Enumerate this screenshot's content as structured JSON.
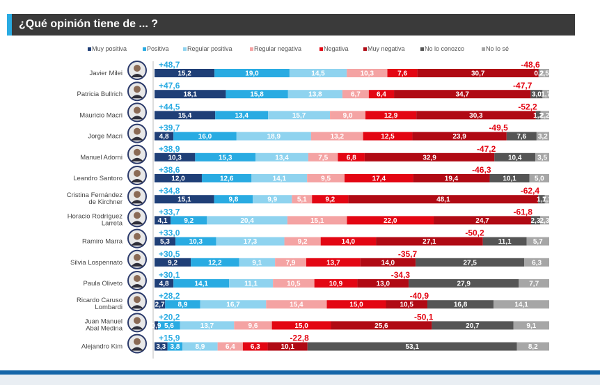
{
  "title": "¿Qué opinión tiene de ... ?",
  "colors": {
    "title_bg": "#3a3a3a",
    "title_accent": "#29abe2",
    "positive_total": "#29abe2",
    "negative_total": "#e30613",
    "footer": "#1565a8"
  },
  "chart_data": {
    "type": "bar",
    "orientation": "horizontal",
    "stacked": true,
    "normalized": true,
    "legend_position": "top",
    "categories": [
      "Javier Milei",
      "Patricia Bullrich",
      "Mauricio Macri",
      "Jorge Macri",
      "Manuel Adorni",
      "Leandro Santoro",
      "Cristina Fernández de Kirchner",
      "Horacio Rodríguez Larreta",
      "Ramiro Marra",
      "Silvia Lospennato",
      "Paula Oliveto",
      "Ricardo Caruso Lombardi",
      "Juan Manuel Abal Medina",
      "Alejandro Kim"
    ],
    "category_lines": [
      [
        "Javier Milei"
      ],
      [
        "Patricia Bullrich"
      ],
      [
        "Mauricio Macri"
      ],
      [
        "Jorge Macri"
      ],
      [
        "Manuel Adorni"
      ],
      [
        "Leandro Santoro"
      ],
      [
        "Cristina Fernández",
        "de Kirchner"
      ],
      [
        "Horacio Rodríguez",
        "Larreta"
      ],
      [
        "Ramiro Marra"
      ],
      [
        "Silvia Lospennato"
      ],
      [
        "Paula Oliveto"
      ],
      [
        "Ricardo Caruso",
        "Lombardi"
      ],
      [
        "Juan Manuel",
        "Abal Medina"
      ],
      [
        "Alejandro Kim"
      ]
    ],
    "series": [
      {
        "name": "Muy positiva",
        "color": "#1f3f77",
        "label_color": "#ffffff",
        "values": [
          15.2,
          18.1,
          15.4,
          4.8,
          10.3,
          12.0,
          15.1,
          4.1,
          5.3,
          9.2,
          4.8,
          2.7,
          0.9,
          3.3
        ]
      },
      {
        "name": "Positiva",
        "color": "#29abe2",
        "label_color": "#ffffff",
        "values": [
          19.0,
          15.8,
          13.4,
          16.0,
          15.3,
          12.6,
          9.8,
          9.2,
          10.3,
          12.2,
          14.1,
          8.9,
          5.6,
          3.8
        ]
      },
      {
        "name": "Regular positiva",
        "color": "#8fd3ef",
        "label_color": "#ffffff",
        "values": [
          14.5,
          13.8,
          15.7,
          18.9,
          13.4,
          14.1,
          9.9,
          20.4,
          17.3,
          9.1,
          11.1,
          16.7,
          13.7,
          8.9
        ]
      },
      {
        "name": "Regular negativa",
        "color": "#f4a3a3",
        "label_color": "#ffffff",
        "values": [
          10.3,
          6.7,
          9.0,
          13.2,
          7.5,
          9.5,
          5.1,
          15.1,
          9.2,
          7.9,
          10.5,
          15.4,
          9.6,
          6.4
        ]
      },
      {
        "name": "Negativa",
        "color": "#e30613",
        "label_color": "#ffffff",
        "values": [
          7.6,
          6.4,
          12.9,
          12.5,
          6.8,
          17.4,
          9.2,
          22.0,
          14.0,
          13.7,
          10.9,
          15.0,
          15.0,
          6.3
        ]
      },
      {
        "name": "Muy negativa",
        "color": "#b00a14",
        "label_color": "#ffffff",
        "values": [
          30.7,
          34.7,
          30.3,
          23.9,
          32.9,
          19.4,
          48.1,
          24.7,
          27.1,
          14.0,
          13.0,
          10.5,
          25.6,
          10.1
        ]
      },
      {
        "name": "No lo conozco",
        "color": "#555555",
        "label_color": "#ffffff",
        "values": [
          0.2,
          3.0,
          1.2,
          7.6,
          10.4,
          10.1,
          1.7,
          2.3,
          11.1,
          27.5,
          27.9,
          16.8,
          20.7,
          53.1
        ]
      },
      {
        "name": "No lo sé",
        "color": "#a6a6a6",
        "label_color": "#ffffff",
        "values": [
          2.5,
          1.7,
          2.2,
          3.2,
          3.5,
          5.0,
          1.1,
          2.3,
          5.7,
          6.3,
          7.7,
          14.1,
          9.1,
          8.2
        ]
      }
    ],
    "value_labels": [
      [
        "15,2",
        "19,0",
        "14,5",
        "10,3",
        "7,6",
        "30,7",
        "0,2",
        "2,5"
      ],
      [
        "18,1",
        "15,8",
        "13,8",
        "6,7",
        "6,4",
        "34,7",
        "3,0",
        "1,7"
      ],
      [
        "15,4",
        "13,4",
        "15,7",
        "9,0",
        "12,9",
        "30,3",
        "1,2",
        "2,2"
      ],
      [
        "4,8",
        "16,0",
        "18,9",
        "13,2",
        "12,5",
        "23,9",
        "7,6",
        "3,2"
      ],
      [
        "10,3",
        "15,3",
        "13,4",
        "7,5",
        "6,8",
        "32,9",
        "10,4",
        "3,5"
      ],
      [
        "12,0",
        "12,6",
        "14,1",
        "9,5",
        "17,4",
        "19,4",
        "10,1",
        "5,0"
      ],
      [
        "15,1",
        "9,8",
        "9,9",
        "5,1",
        "9,2",
        "48,1",
        "1,7",
        "1,1"
      ],
      [
        "4,1",
        "9,2",
        "20,4",
        "15,1",
        "22,0",
        "24,7",
        "2,3",
        "2,3"
      ],
      [
        "5,3",
        "10,3",
        "17,3",
        "9,2",
        "14,0",
        "27,1",
        "11,1",
        "5,7"
      ],
      [
        "9,2",
        "12,2",
        "9,1",
        "7,9",
        "13,7",
        "14,0",
        "27,5",
        "6,3"
      ],
      [
        "4,8",
        "14,1",
        "11,1",
        "10,5",
        "10,9",
        "13,0",
        "27,9",
        "7,7"
      ],
      [
        "2,7",
        "8,9",
        "16,7",
        "15,4",
        "15,0",
        "10,5",
        "16,8",
        "14,1"
      ],
      [
        "0,9",
        "5,6",
        "13,7",
        "9,6",
        "15,0",
        "25,6",
        "20,7",
        "9,1"
      ],
      [
        "3,3",
        "3,8",
        "8,9",
        "6,4",
        "6,3",
        "10,1",
        "53,1",
        "8,2"
      ]
    ],
    "positive_totals": [
      "+48,7",
      "+47,6",
      "+44,5",
      "+39,7",
      "+38,9",
      "+38,6",
      "+34,8",
      "+33,7",
      "+33,0",
      "+30,5",
      "+30,1",
      "+28,2",
      "+20,2",
      "+15,9"
    ],
    "negative_totals": [
      "-48,6",
      "-47,7",
      "-52,2",
      "-49,5",
      "-47,2",
      "-46,3",
      "-62,4",
      "-61,8",
      "-50,2",
      "-35,7",
      "-34,3",
      "-40,9",
      "-50,1",
      "-22,8"
    ]
  }
}
